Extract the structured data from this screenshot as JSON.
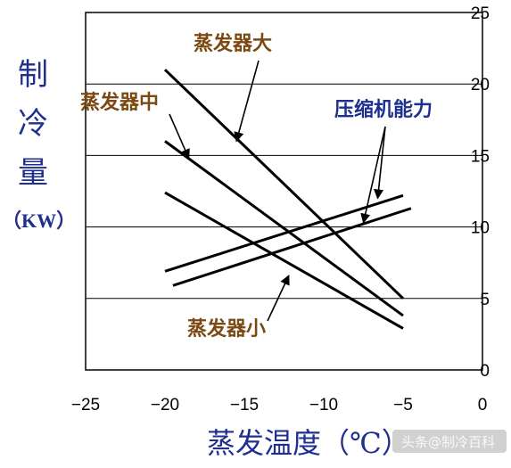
{
  "chart_data": {
    "type": "line",
    "xlabel": "蒸发温度（℃）",
    "ylabel_chars": [
      "制",
      "冷",
      "量"
    ],
    "ylabel_unit": "（KW）",
    "xlim": [
      -25,
      0
    ],
    "ylim": [
      0,
      25
    ],
    "x_ticks": [
      "−25",
      "−20",
      "−15",
      "−10",
      "−5",
      "0"
    ],
    "y_ticks": [
      "0",
      "5",
      "10",
      "15",
      "20",
      "25"
    ],
    "grid_y": [
      5,
      15,
      20
    ],
    "series": [
      {
        "name": "蒸发器大",
        "x": [
          -20,
          -5
        ],
        "y": [
          21.0,
          5.0
        ]
      },
      {
        "name": "蒸发器中",
        "x": [
          -20,
          -5
        ],
        "y": [
          16.0,
          3.8
        ]
      },
      {
        "name": "蒸发器小",
        "x": [
          -20,
          -5
        ],
        "y": [
          12.4,
          2.9
        ]
      },
      {
        "name": "压缩机能力",
        "x": [
          -20,
          -5
        ],
        "y": [
          6.9,
          12.2
        ]
      },
      {
        "name": "压缩机能力",
        "x": [
          -19.5,
          -4.5
        ],
        "y": [
          5.9,
          11.3
        ]
      }
    ],
    "annotations": [
      {
        "text": "蒸发器大",
        "color": "#7a4a12",
        "point": [
          -15.5,
          16.0
        ]
      },
      {
        "text": "蒸发器中",
        "color": "#7a4a12",
        "point": [
          -18.5,
          14.8
        ]
      },
      {
        "text": "压缩机能力",
        "color": "#1f2f8f",
        "points": [
          [
            -6.6,
            12.0
          ],
          [
            -7.5,
            10.3
          ]
        ]
      },
      {
        "text": "蒸发器小",
        "color": "#7a4a12",
        "point": [
          -12.2,
          6.6
        ]
      }
    ]
  },
  "watermark": "头条@制冷百科"
}
